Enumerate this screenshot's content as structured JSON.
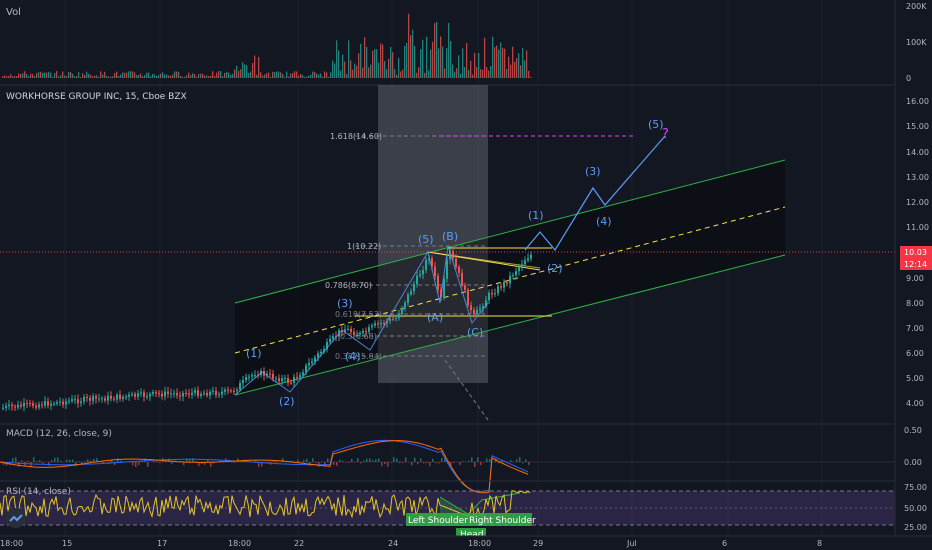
{
  "colors": {
    "background": "#131722",
    "grid": "#1e222d",
    "up": "#26a69a",
    "down": "#ef5350",
    "channel": "#2fb344",
    "wave_label": "#5b9cf6",
    "fib_magenta": "#e040fb",
    "yellow": "#f7e04b",
    "macd": "#2962ff",
    "signal": "#ff6d00",
    "rsi": "#e3c52a",
    "price_tag": "#f23645"
  },
  "volume_pane": {
    "label": "Vol",
    "axis_ticks": [
      "200K",
      "100K",
      "0"
    ]
  },
  "price_pane": {
    "symbol_title": "WORKHORSE GROUP INC, 15, Cboe BZX",
    "axis_ticks": [
      "16.00",
      "15.00",
      "14.00",
      "13.00",
      "12.00",
      "11.00",
      "10.00",
      "9.00",
      "8.00",
      "7.00",
      "6.00",
      "5.00",
      "4.00"
    ],
    "last_price_tag": "10.03",
    "countdown_tag": "12:14",
    "fib_labels": {
      "f1618": "1.618(14.60)",
      "f1": "1(10.22)",
      "f786": "0.786(8.70)",
      "f618": "0.618(7.53)",
      "f5": "0.5(6.68)",
      "f382": "0.382(5.84)"
    },
    "question_mark": "?",
    "wave_labels": {
      "w1a": "(1)",
      "w2a": "(2)",
      "w3a": "(3)",
      "w4a": "(4)",
      "w5a": "(5)",
      "wA": "(A)",
      "wB": "(B)",
      "wC": "(C)",
      "w1b": "(1)",
      "w2b": "(2)",
      "w3b": "(3)",
      "w4b": "(4)",
      "w5b": "(5)"
    }
  },
  "macd_pane": {
    "label": "MACD (12, 26, close, 9)",
    "axis_ticks": [
      "0.50",
      "0.00"
    ]
  },
  "rsi_pane": {
    "label": "RSI (14, close)",
    "axis_ticks": [
      "75.00",
      "50.00",
      "25.00"
    ],
    "annotations": {
      "left_shoulder": "Left Shoulder",
      "right_shoulder": "Right Shoulder",
      "head": "Head"
    }
  },
  "time_axis": {
    "labels": [
      "18:00",
      "15",
      "17",
      "18:00",
      "22",
      "24",
      "18:00",
      "29",
      "Jul",
      "6",
      "8"
    ]
  },
  "logo": {
    "name": "tradingview-logo"
  }
}
